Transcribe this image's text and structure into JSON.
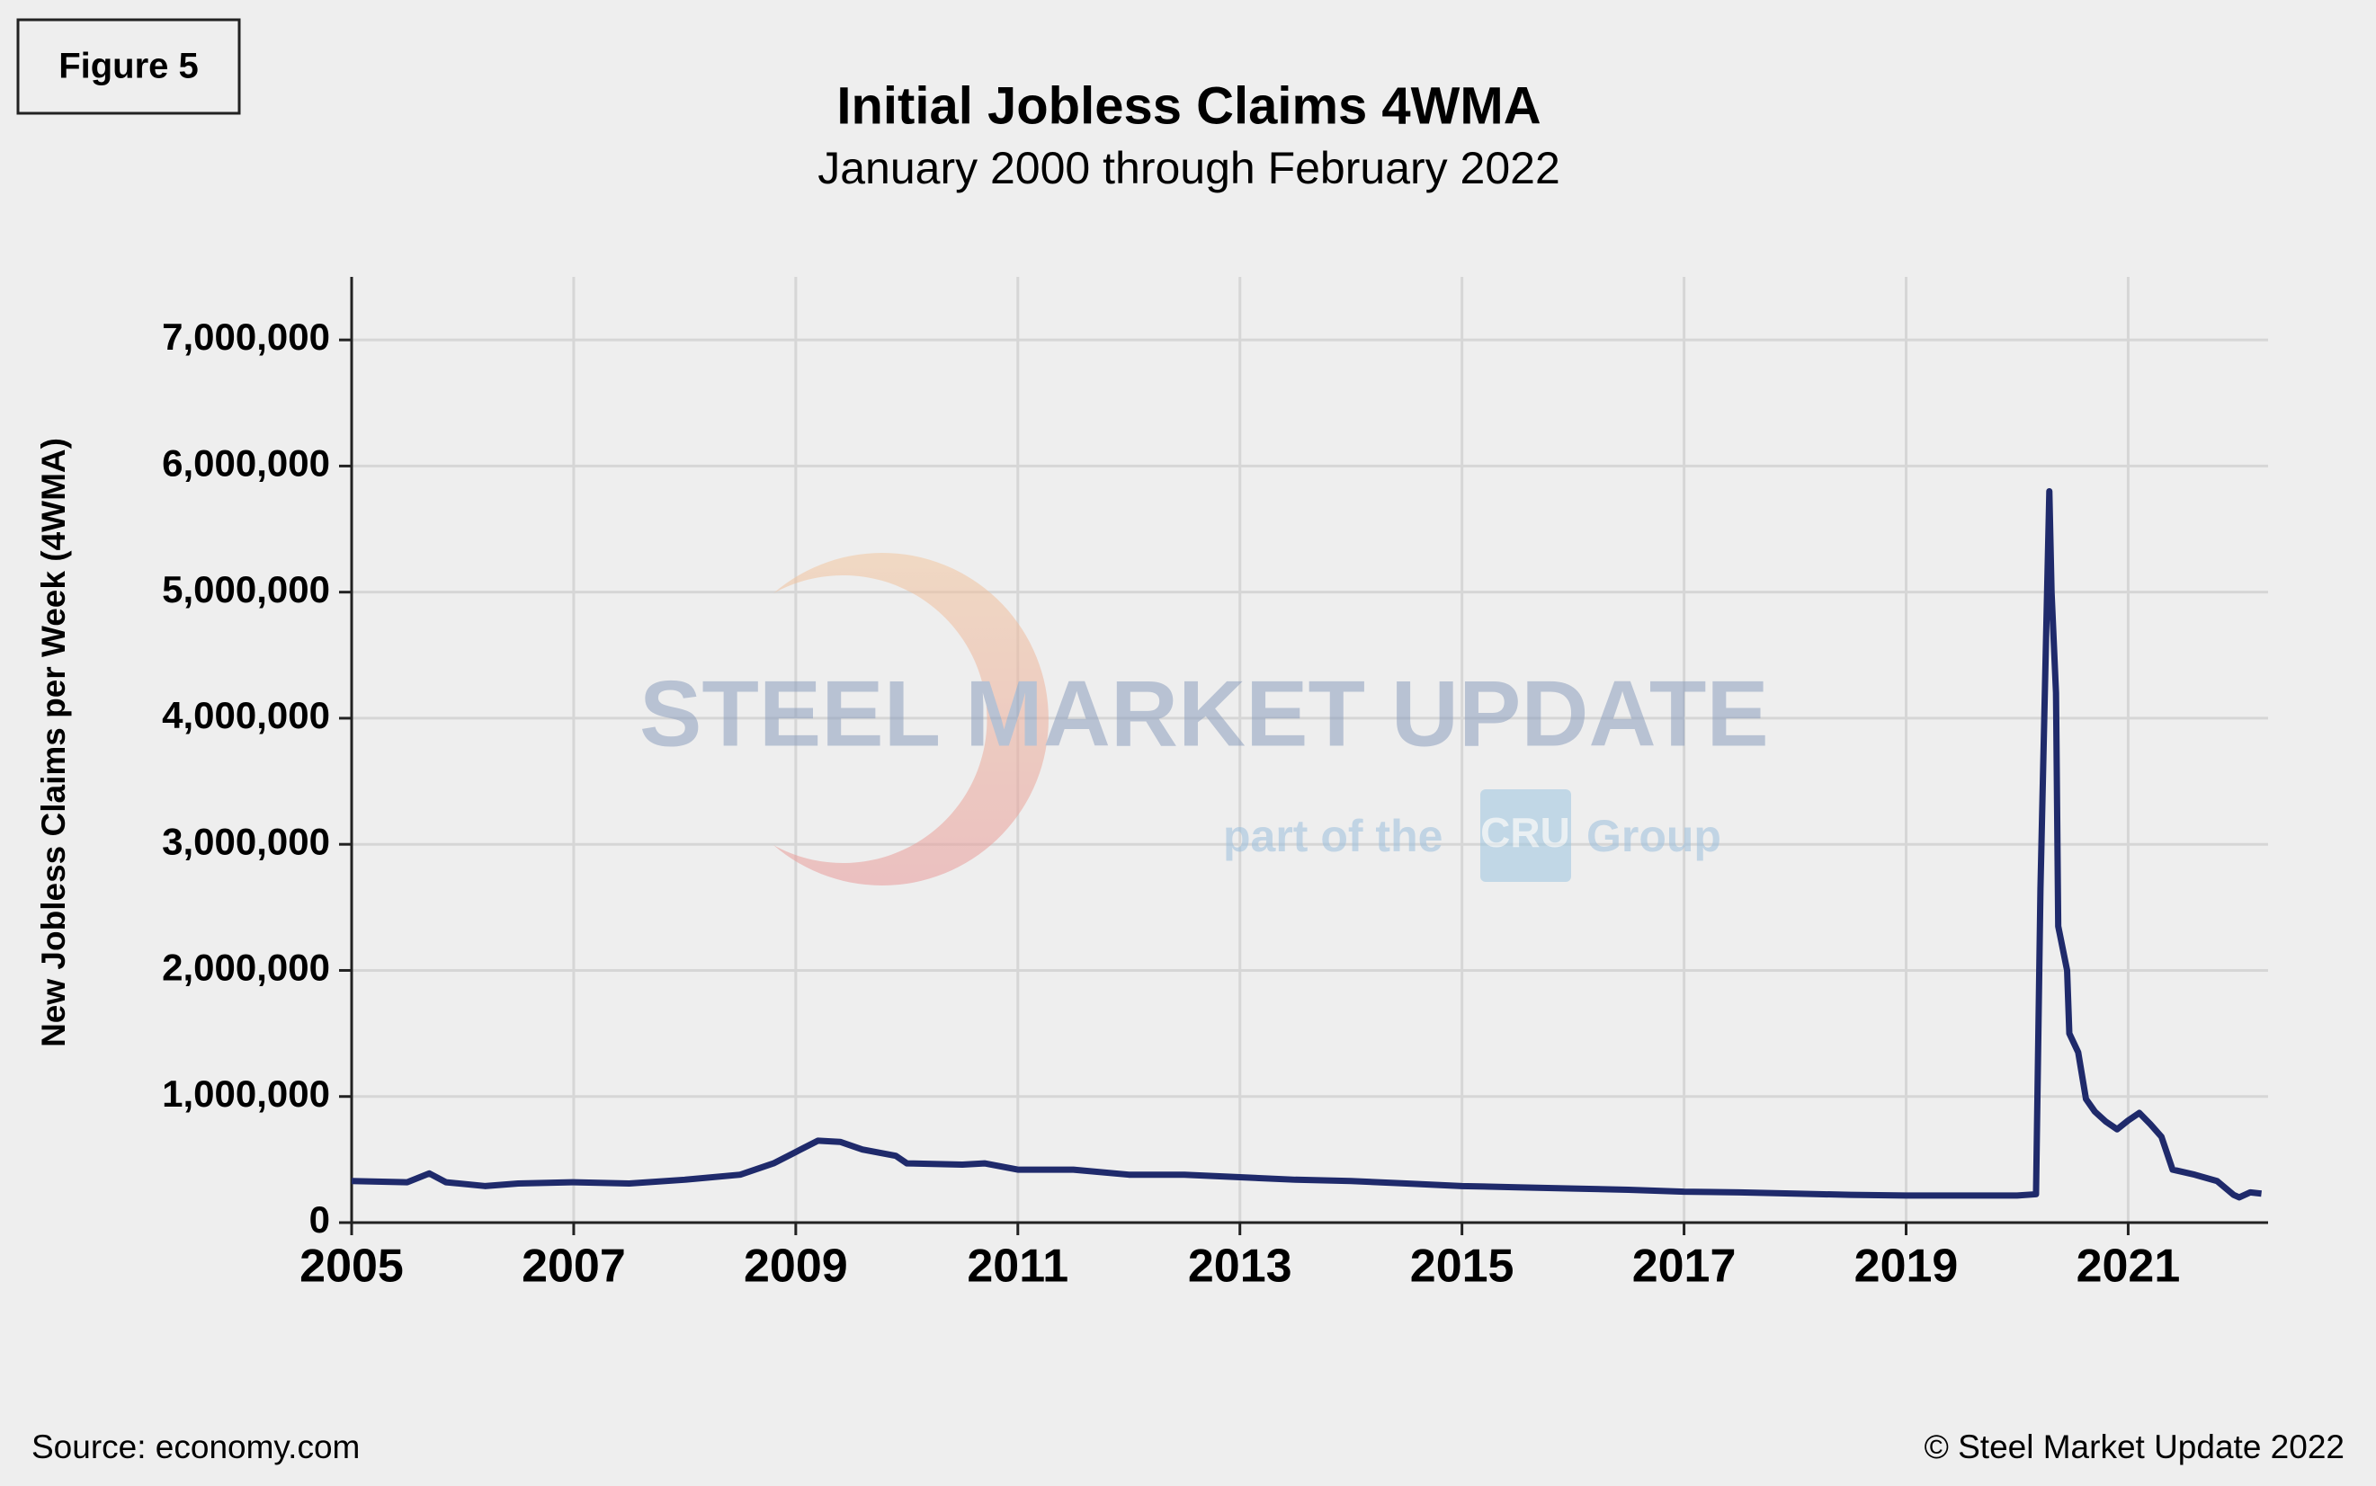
{
  "figure_label": "Figure 5",
  "chart_data": {
    "type": "line",
    "title": "Initial Jobless Claims 4WMA",
    "subtitle": "January 2000 through February 2022",
    "y_label": "New Jobless Claims per Week (4WMA)",
    "x": [
      2005.0,
      2005.5,
      2005.7,
      2005.85,
      2006.2,
      2006.5,
      2007.0,
      2007.5,
      2008.0,
      2008.5,
      2008.8,
      2009.0,
      2009.2,
      2009.4,
      2009.6,
      2009.9,
      2010.0,
      2010.5,
      2010.7,
      2011.0,
      2011.5,
      2012.0,
      2012.5,
      2013.0,
      2013.5,
      2014.0,
      2014.5,
      2015.0,
      2015.5,
      2016.0,
      2016.5,
      2017.0,
      2017.5,
      2018.0,
      2018.5,
      2019.0,
      2019.5,
      2020.0,
      2020.17,
      2020.21,
      2020.29,
      2020.31,
      2020.35,
      2020.37,
      2020.45,
      2020.47,
      2020.55,
      2020.62,
      2020.7,
      2020.8,
      2020.9,
      2021.0,
      2021.1,
      2021.2,
      2021.3,
      2021.4,
      2021.6,
      2021.8,
      2021.95,
      2022.0,
      2022.1,
      2022.2
    ],
    "series": [
      {
        "name": "Initial Jobless Claims 4WMA",
        "color": "#1f2a6b",
        "values": [
          330000,
          320000,
          390000,
          320000,
          290000,
          310000,
          320000,
          310000,
          340000,
          380000,
          470000,
          560000,
          650000,
          640000,
          580000,
          530000,
          470000,
          460000,
          470000,
          420000,
          420000,
          380000,
          380000,
          360000,
          340000,
          330000,
          310000,
          290000,
          280000,
          270000,
          260000,
          245000,
          240000,
          230000,
          220000,
          215000,
          215000,
          215000,
          225000,
          2650000,
          5800000,
          5000000,
          4200000,
          2350000,
          2000000,
          1500000,
          1350000,
          980000,
          880000,
          800000,
          740000,
          810000,
          870000,
          780000,
          680000,
          420000,
          380000,
          330000,
          220000,
          200000,
          240000,
          230000
        ]
      }
    ],
    "xlim": [
      2005,
      2022.26
    ],
    "xticks": [
      2005,
      2007,
      2009,
      2011,
      2013,
      2015,
      2017,
      2019,
      2021
    ],
    "ylim": [
      0,
      7500000
    ],
    "yticks": [
      0,
      {
        "value": 1000000,
        "label": "1,000,000"
      },
      {
        "value": 2000000,
        "label": "2,000,000"
      },
      {
        "value": 3000000,
        "label": "3,000,000"
      },
      {
        "value": 4000000,
        "label": "4,000,000"
      },
      {
        "value": 5000000,
        "label": "5,000,000"
      },
      {
        "value": 6000000,
        "label": "6,000,000"
      },
      {
        "value": 7000000,
        "label": "7,000,000"
      }
    ],
    "grid": true
  },
  "watermark": {
    "brand": "STEEL MARKET UPDATE",
    "part": "part of the",
    "cru": "CRU",
    "group": "Group"
  },
  "footer": {
    "source": "Source: economy.com",
    "copyright": "© Steel Market Update 2022"
  }
}
